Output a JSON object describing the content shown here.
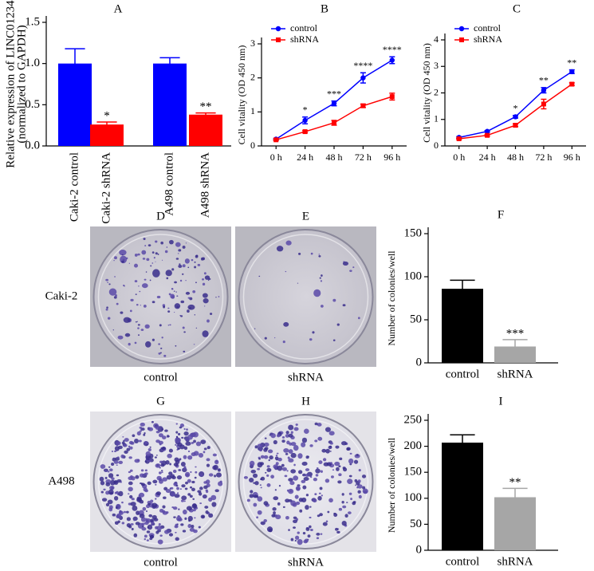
{
  "chart_data": [
    {
      "type": "bar",
      "title": "A",
      "y_label": [
        "Relative  expression of LINC01234",
        "(normalized to GAPDH)"
      ],
      "categories": [
        "Caki-2 control",
        "Caki-2 shRNA",
        "A498 control",
        "A498 shRNA"
      ],
      "values": [
        1.0,
        0.26,
        1.0,
        0.38
      ],
      "errors": [
        0.18,
        0.03,
        0.07,
        0.02
      ],
      "colors": [
        "#0000ff",
        "#ff0000",
        "#0000ff",
        "#ff0000"
      ],
      "annotations": [
        null,
        "*",
        null,
        "**"
      ],
      "ylim": [
        0,
        1.5
      ],
      "yticks": [
        {
          "value": 0,
          "label": "0.0"
        },
        {
          "value": 0.5,
          "label": "0.5"
        },
        {
          "value": 1,
          "label": "1.0"
        },
        {
          "value": 1.5,
          "label": "1.5"
        }
      ]
    },
    {
      "type": "line",
      "title": "B",
      "y_label": "Cell vitality (OD 450 nm)",
      "categories": [
        "0 h",
        "24 h",
        "48 h",
        "72 h",
        "96 h"
      ],
      "series": [
        {
          "name": "control",
          "color": "#0000ff",
          "marker": "circle",
          "values": [
            0.2,
            0.75,
            1.25,
            2.0,
            2.52
          ],
          "errors": [
            0.02,
            0.1,
            0.07,
            0.15,
            0.1
          ]
        },
        {
          "name": "shRNA",
          "color": "#ff0000",
          "marker": "square",
          "values": [
            0.18,
            0.42,
            0.68,
            1.18,
            1.45
          ],
          "errors": [
            0.02,
            0.03,
            0.07,
            0.05,
            0.1
          ]
        }
      ],
      "annotations": [
        null,
        "*",
        "***",
        "****",
        "****"
      ],
      "ylim": [
        0,
        3
      ],
      "yticks": [
        0,
        1,
        2,
        3
      ],
      "legend": "upper left"
    },
    {
      "type": "line",
      "title": "C",
      "y_label": "Cell vitality (OD 450 nm)",
      "categories": [
        "0 h",
        "24 h",
        "48 h",
        "72 h",
        "96 h"
      ],
      "series": [
        {
          "name": "control",
          "color": "#0000ff",
          "marker": "circle",
          "values": [
            0.32,
            0.55,
            1.1,
            2.1,
            2.8
          ],
          "errors": [
            0.03,
            0.03,
            0.05,
            0.1,
            0.07
          ]
        },
        {
          "name": "shRNA",
          "color": "#ff0000",
          "marker": "square",
          "values": [
            0.27,
            0.4,
            0.78,
            1.58,
            2.33
          ],
          "errors": [
            0.02,
            0.03,
            0.05,
            0.18,
            0.05
          ]
        }
      ],
      "annotations": [
        null,
        null,
        "*",
        "**",
        "**"
      ],
      "ylim": [
        0,
        4
      ],
      "yticks": [
        0,
        1,
        2,
        3,
        4
      ],
      "legend": "upper left"
    },
    {
      "type": "bar",
      "title": "F",
      "y_label": "Number of colonies/well",
      "categories": [
        "control",
        "shRNA"
      ],
      "values": [
        86,
        19
      ],
      "errors": [
        10,
        8
      ],
      "colors": [
        "#000000",
        "#a6a6a6"
      ],
      "annotations": [
        null,
        "***"
      ],
      "ylim": [
        0,
        150
      ],
      "yticks": [
        0,
        50,
        100,
        150
      ]
    },
    {
      "type": "bar",
      "title": "I",
      "y_label": "Number of colonies/well",
      "categories": [
        "control",
        "shRNA"
      ],
      "values": [
        207,
        102
      ],
      "errors": [
        15,
        17
      ],
      "colors": [
        "#000000",
        "#a6a6a6"
      ],
      "annotations": [
        null,
        "**"
      ],
      "ylim": [
        0,
        250
      ],
      "yticks": [
        0,
        50,
        100,
        150,
        200,
        250
      ]
    }
  ],
  "photos": {
    "rows": [
      {
        "label": "Caki-2",
        "images": [
          {
            "letter": "D",
            "caption": "control"
          },
          {
            "letter": "E",
            "caption": "shRNA"
          }
        ]
      },
      {
        "label": "A498",
        "images": [
          {
            "letter": "G",
            "caption": "control"
          },
          {
            "letter": "H",
            "caption": "shRNA"
          }
        ]
      }
    ]
  }
}
